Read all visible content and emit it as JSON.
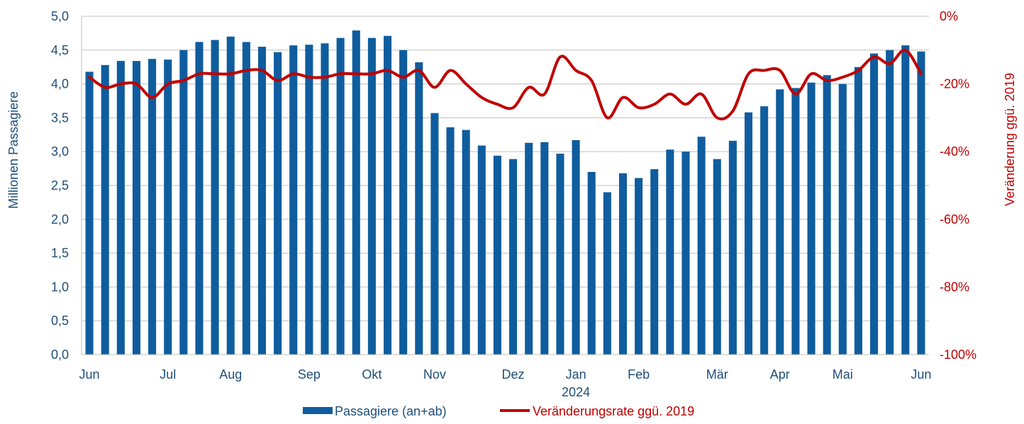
{
  "chart_data": {
    "type": "bar+line",
    "title": "",
    "grid": true,
    "legend_position": "bottom",
    "colors": {
      "bars": "#0f5d9e",
      "line": "#c00000",
      "axis_left": "#1f4e79",
      "axis_right": "#c00000",
      "grid": "#bfbfbf"
    },
    "y_left": {
      "label": "Millionen Passagiere",
      "ylim": [
        0,
        5
      ],
      "ticks": [
        "0,0",
        "0,5",
        "1,0",
        "1,5",
        "2,0",
        "2,5",
        "3,0",
        "3,5",
        "4,0",
        "4,5",
        "5,0"
      ]
    },
    "y_right": {
      "label": "Veränderung ggü. 2019",
      "ylim": [
        -100,
        0
      ],
      "ticks": [
        "-100%",
        "-80%",
        "-60%",
        "-40%",
        "-20%",
        "0%"
      ]
    },
    "x_axis": {
      "month_labels": [
        "Jun",
        "Jul",
        "Aug",
        "Sep",
        "Okt",
        "Nov",
        "Dez",
        "Jan",
        "Feb",
        "Mär",
        "Apr",
        "Mai",
        "Jun"
      ],
      "month_label_weeks": [
        0,
        5,
        9,
        14,
        18,
        22,
        27,
        31,
        35,
        40,
        44,
        48,
        53
      ],
      "year_label": "2024"
    },
    "series": [
      {
        "name": "Passagiere (an+ab)",
        "type": "bar",
        "values": [
          4.18,
          4.28,
          4.34,
          4.34,
          4.37,
          4.36,
          4.5,
          4.62,
          4.65,
          4.7,
          4.62,
          4.55,
          4.47,
          4.57,
          4.58,
          4.6,
          4.68,
          4.79,
          4.68,
          4.71,
          4.5,
          4.32,
          3.57,
          3.36,
          3.32,
          3.09,
          2.94,
          2.89,
          3.13,
          3.14,
          2.97,
          3.17,
          2.7,
          2.4,
          2.68,
          2.61,
          2.74,
          3.03,
          3.0,
          3.22,
          2.89,
          3.16,
          3.58,
          3.67,
          3.92,
          3.94,
          4.02,
          4.13,
          4.0,
          4.25,
          4.45,
          4.5,
          4.57,
          4.48
        ]
      },
      {
        "name": "Veränderungsrate ggü. 2019",
        "type": "line",
        "values": [
          -18,
          -21,
          -20,
          -20,
          -24,
          -20,
          -19,
          -17,
          -17,
          -17,
          -16,
          -16,
          -19,
          -17,
          -18,
          -18,
          -17,
          -17,
          -17,
          -16,
          -18,
          -16,
          -21,
          -16,
          -20,
          -24,
          -26,
          -27,
          -21,
          -23,
          -12,
          -16,
          -19,
          -30,
          -24,
          -27,
          -26,
          -23,
          -26,
          -23,
          -30,
          -28,
          -17,
          -16,
          -16,
          -23,
          -17,
          -19,
          -18,
          -16,
          -12,
          -14,
          -10,
          -17
        ]
      }
    ]
  }
}
